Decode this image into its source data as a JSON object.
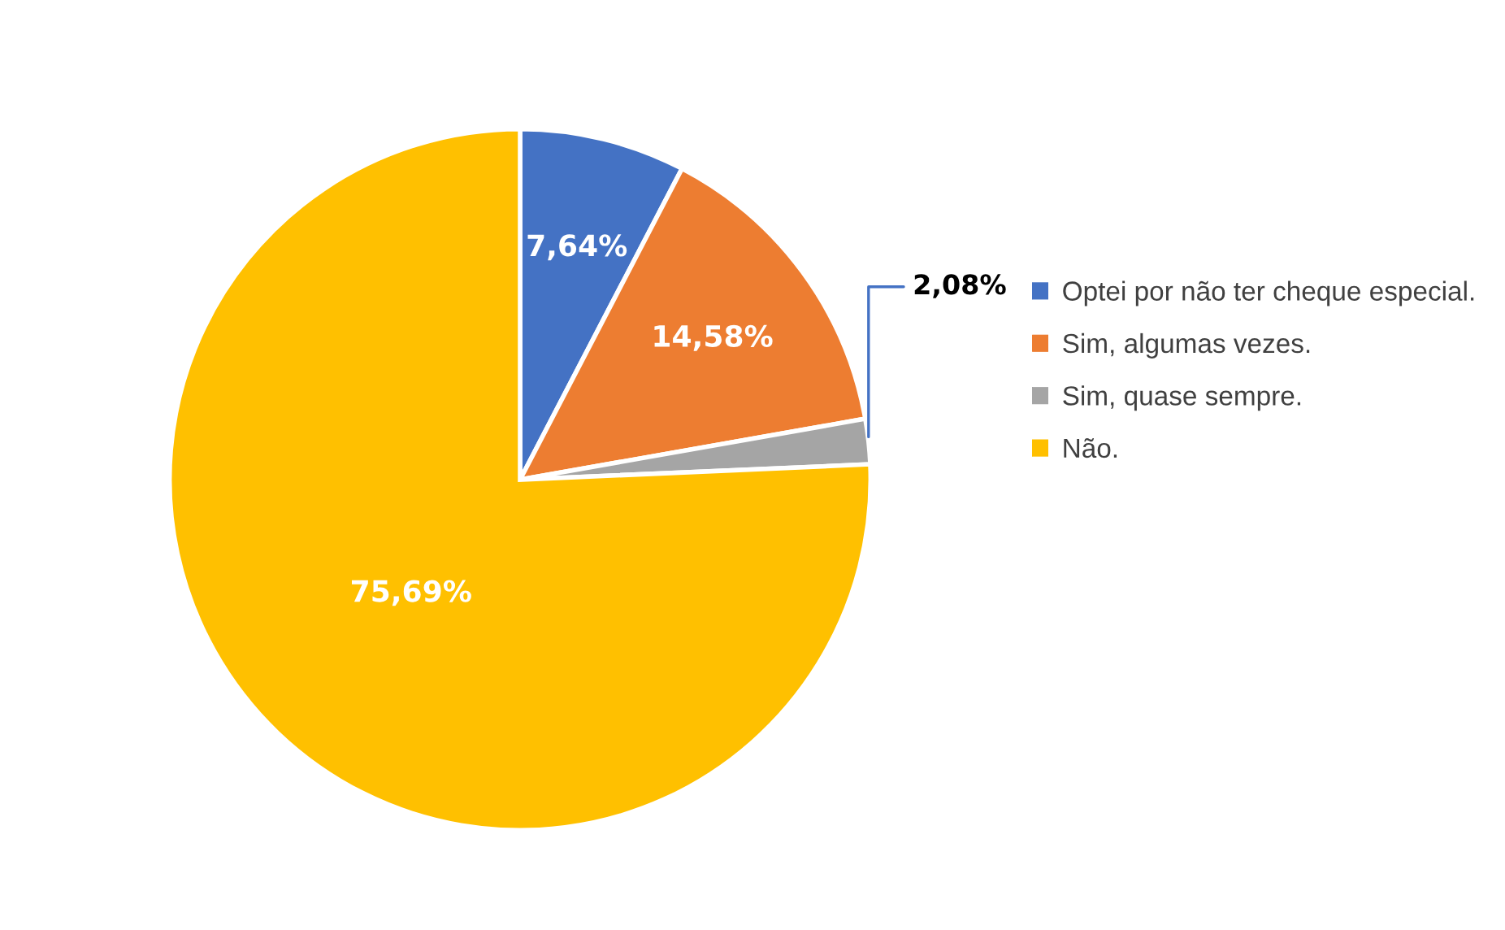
{
  "chart_data": {
    "type": "pie",
    "categories": [
      "Optei por não ter cheque especial.",
      "Sim, algumas vezes.",
      "Sim, quase sempre.",
      "Não."
    ],
    "values": [
      7.64,
      14.58,
      2.08,
      75.69
    ],
    "colors": [
      "#4472c4",
      "#ed7d31",
      "#a5a5a5",
      "#ffc000"
    ],
    "value_labels": [
      "7,64%",
      "14,58%",
      "2,08%",
      "75,69%"
    ],
    "legend": "right"
  }
}
